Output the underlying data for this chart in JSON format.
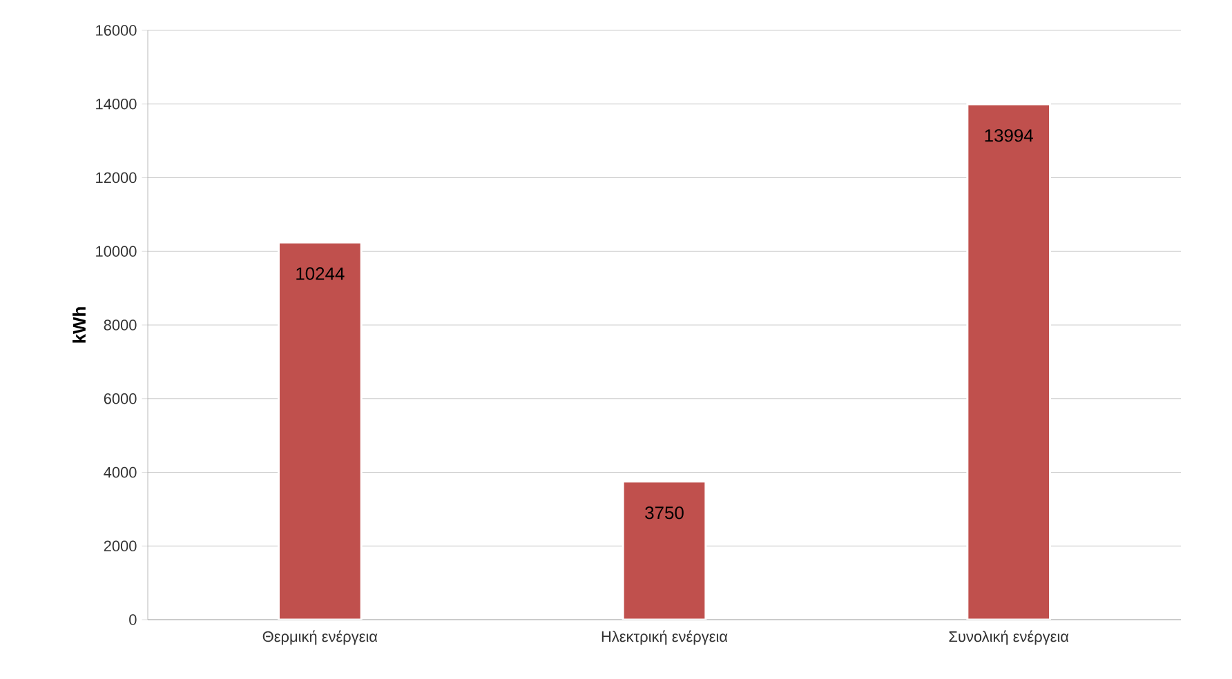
{
  "chart_data": {
    "type": "bar",
    "ylabel": "kWh",
    "categories": [
      "Θερμική ενέργεια",
      "Ηλεκτρική ενέργεια",
      "Συνολική ενέργεια"
    ],
    "values": [
      10244,
      3750,
      13994
    ],
    "color": "#c0504d",
    "ylim": [
      0,
      16000
    ],
    "yticks": [
      0,
      2000,
      4000,
      6000,
      8000,
      10000,
      12000,
      14000,
      16000
    ],
    "grid": "y",
    "data_labels": true
  }
}
